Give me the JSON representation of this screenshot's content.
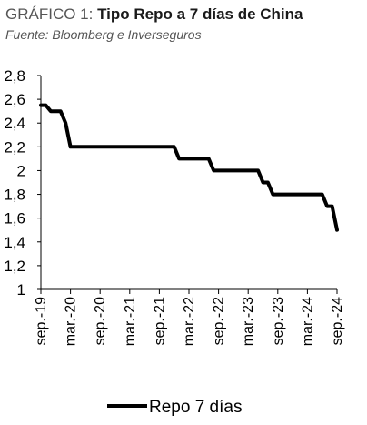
{
  "header": {
    "label": "GRÁFICO 1:",
    "title": "Tipo Repo a 7 días de China",
    "source": "Fuente: Bloomberg e Inverseguros"
  },
  "colors": {
    "line": "#000000",
    "axis": "#000000"
  },
  "chart_data": {
    "type": "line",
    "title": "Tipo Repo a 7 días de China",
    "xlabel": "",
    "ylabel": "",
    "ylim": [
      1,
      2.8
    ],
    "yticks": [
      "1",
      "1,2",
      "1,4",
      "1,6",
      "1,8",
      "2",
      "2,2",
      "2,4",
      "2,6",
      "2,8"
    ],
    "xlim": [
      "2019-09",
      "2024-09"
    ],
    "x_tick_labels": [
      "sep.-19",
      "mar.-20",
      "sep.-20",
      "mar.-21",
      "sep.-21",
      "mar.-22",
      "sep.-22",
      "mar.-23",
      "sep.-23",
      "mar.-24",
      "sep.-24"
    ],
    "grid": false,
    "legend": "bottom",
    "series": [
      {
        "name": "Repo 7 días",
        "points": [
          [
            "2019-09",
            2.55
          ],
          [
            "2019-10",
            2.55
          ],
          [
            "2019-11",
            2.5
          ],
          [
            "2019-12",
            2.5
          ],
          [
            "2020-01",
            2.5
          ],
          [
            "2020-02",
            2.4
          ],
          [
            "2020-03",
            2.2
          ],
          [
            "2020-06",
            2.2
          ],
          [
            "2020-09",
            2.2
          ],
          [
            "2020-12",
            2.2
          ],
          [
            "2021-03",
            2.2
          ],
          [
            "2021-06",
            2.2
          ],
          [
            "2021-09",
            2.2
          ],
          [
            "2021-12",
            2.2
          ],
          [
            "2022-01",
            2.1
          ],
          [
            "2022-04",
            2.1
          ],
          [
            "2022-07",
            2.1
          ],
          [
            "2022-08",
            2.0
          ],
          [
            "2022-11",
            2.0
          ],
          [
            "2023-02",
            2.0
          ],
          [
            "2023-05",
            2.0
          ],
          [
            "2023-06",
            1.9
          ],
          [
            "2023-07",
            1.9
          ],
          [
            "2023-08",
            1.8
          ],
          [
            "2023-11",
            1.8
          ],
          [
            "2024-02",
            1.8
          ],
          [
            "2024-05",
            1.8
          ],
          [
            "2024-06",
            1.8
          ],
          [
            "2024-07",
            1.7
          ],
          [
            "2024-08",
            1.7
          ],
          [
            "2024-09",
            1.5
          ]
        ]
      }
    ]
  }
}
